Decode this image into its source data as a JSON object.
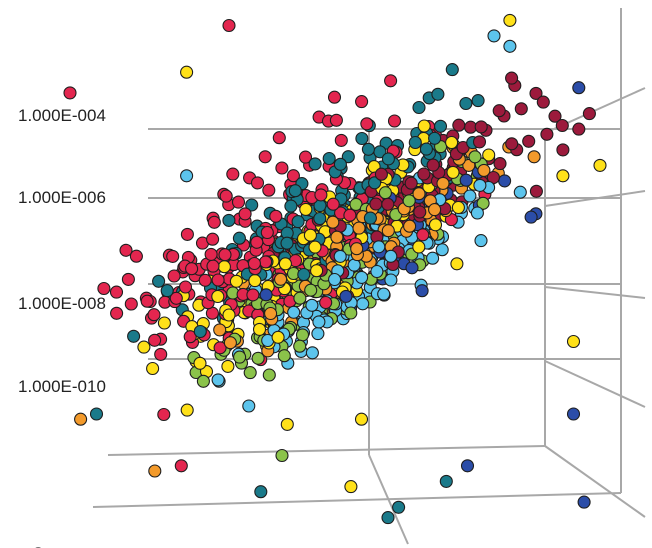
{
  "chart_data": {
    "type": "scatter",
    "projection": "3d",
    "title": "",
    "xlabel": "",
    "ylabel": "",
    "zlabel": "",
    "z_scale": "log",
    "z_ticks": [
      {
        "label": "1.000E-004",
        "value": 0.0001
      },
      {
        "label": "1.000E-006",
        "value": 1e-06
      },
      {
        "label": "1.000E-008",
        "value": 1e-08
      },
      {
        "label": "1.000E-010",
        "value": 1e-10
      }
    ],
    "grid": true,
    "legend": "none",
    "series": [
      {
        "color": "#E3264F",
        "cloud": {
          "seed": 11,
          "n": 210,
          "dx": -55,
          "dy": 40,
          "sx": 88,
          "sy": 42,
          "r": 0.06
        },
        "points": [
          [
            0.0,
            0.84
          ],
          [
            -0.06,
            -0.05
          ],
          [
            0.21,
            0.12
          ],
          [
            0.3,
            0.97
          ],
          [
            -0.1,
            1.04
          ],
          [
            0.25,
            0.55
          ],
          [
            -0.15,
            0.82
          ],
          [
            -0.24,
            0.5
          ]
        ]
      },
      {
        "color": "#1A7A8A",
        "cloud": {
          "seed": 23,
          "n": 150,
          "dx": 0,
          "dy": 0,
          "sx": 82,
          "sy": 22,
          "r": 0.1
        },
        "points": [
          [
            0.12,
            0.37
          ],
          [
            0.05,
            0.22
          ],
          [
            0.36,
            0.07
          ],
          [
            0.62,
            0.04
          ],
          [
            0.71,
            0.09
          ],
          [
            0.6,
            0.02
          ]
        ]
      },
      {
        "color": "#F39A2B",
        "cloud": {
          "seed": 37,
          "n": 140,
          "dx": 40,
          "dy": 30,
          "sx": 80,
          "sy": 18,
          "r": 0.08
        },
        "points": [
          [
            0.16,
            0.11
          ],
          [
            0.02,
            0.21
          ]
        ]
      },
      {
        "color": "#FFE119",
        "cloud": {
          "seed": 41,
          "n": 180,
          "dx": -20,
          "dy": 60,
          "sx": 85,
          "sy": 24,
          "r": 0.08
        },
        "points": [
          [
            0.41,
            0.2
          ],
          [
            0.53,
            0.08
          ],
          [
            0.55,
            0.21
          ],
          [
            0.73,
            0.51
          ],
          [
            0.79,
            0.72
          ],
          [
            0.22,
            0.88
          ],
          [
            0.93,
            0.68
          ],
          [
            0.95,
            0.36
          ],
          [
            1.0,
            0.7
          ],
          [
            0.83,
            0.98
          ]
        ]
      },
      {
        "color": "#5CC4EC",
        "cloud": {
          "seed": 53,
          "n": 150,
          "dx": 30,
          "dy": 70,
          "sx": 80,
          "sy": 22,
          "r": 0.07
        },
        "points": [
          [
            0.35,
            0.46
          ],
          [
            0.37,
            0.49
          ],
          [
            0.22,
            0.68
          ],
          [
            0.8,
            0.95
          ],
          [
            0.83,
            0.93
          ]
        ]
      },
      {
        "color": "#8BC34A",
        "cloud": {
          "seed": 61,
          "n": 130,
          "dx": 10,
          "dy": 65,
          "sx": 80,
          "sy": 22,
          "r": 0.07
        },
        "points": [
          [
            0.34,
            0.3
          ],
          [
            0.32,
            0.33
          ],
          [
            0.4,
            0.14
          ]
        ]
      },
      {
        "color": "#9C1A3C",
        "cloud": {
          "seed": 71,
          "n": 120,
          "dx": 90,
          "dy": -10,
          "sx": 70,
          "sy": 20,
          "r": 0.06
        },
        "points": [
          [
            0.98,
            0.8
          ],
          [
            0.96,
            0.77
          ],
          [
            0.93,
            0.73
          ],
          [
            0.88,
            0.65
          ],
          [
            0.66,
            0.61
          ]
        ]
      },
      {
        "color": "#2B4DA8",
        "cloud": {
          "seed": 83,
          "n": 40,
          "dx": 60,
          "dy": 40,
          "sx": 60,
          "sy": 28,
          "r": 0.1
        },
        "points": [
          [
            0.97,
            0.05
          ],
          [
            0.95,
            0.22
          ],
          [
            0.75,
            0.12
          ],
          [
            0.82,
            0.67
          ],
          [
            0.96,
            0.85
          ]
        ]
      }
    ]
  }
}
